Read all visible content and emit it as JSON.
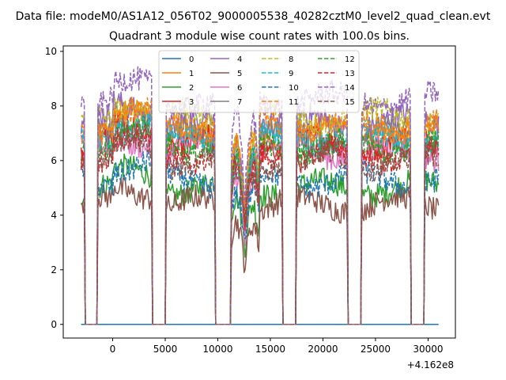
{
  "figure": {
    "suptitle": "Data file: modeM0/AS1A12_056T02_9000005538_40282cztM0_level2_quad_clean.evt",
    "title": "Quadrant 3 module wise count rates with 100.0s bins.",
    "x_offset_label": "+4.162e8"
  },
  "chart_data": {
    "type": "line",
    "title": "Quadrant 3 module wise count rates with 100.0s bins.",
    "xlabel": "",
    "ylabel": "",
    "x_offset": 416200000,
    "xlim": [
      -4700,
      32600
    ],
    "ylim": [
      -0.5,
      10.2
    ],
    "xticks": [
      0,
      5000,
      10000,
      15000,
      20000,
      25000,
      30000
    ],
    "xtick_labels": [
      "0",
      "5000",
      "10000",
      "15000",
      "20000",
      "25000",
      "30000"
    ],
    "yticks": [
      0,
      2,
      4,
      6,
      8,
      10
    ],
    "ytick_labels": [
      "0",
      "2",
      "4",
      "6",
      "8",
      "10"
    ],
    "bin_seconds": 100,
    "x_range": [
      -3000,
      31000
    ],
    "gaps": [
      [
        -2600,
        -1500
      ],
      [
        3800,
        5000
      ],
      [
        9800,
        11200
      ],
      [
        16200,
        17400
      ],
      [
        22400,
        23600
      ],
      [
        28400,
        29600
      ]
    ],
    "grid": false,
    "legend_position": "top-center",
    "series": [
      {
        "name": "0",
        "color": "#1f77b4",
        "style": "solid",
        "level": 0.0
      },
      {
        "name": "1",
        "color": "#ff7f0e",
        "style": "solid",
        "level": 7.1
      },
      {
        "name": "2",
        "color": "#2ca02c",
        "style": "solid",
        "level": 5.0
      },
      {
        "name": "3",
        "color": "#d62728",
        "style": "solid",
        "level": 6.6
      },
      {
        "name": "4",
        "color": "#9467bd",
        "style": "solid",
        "level": 7.4
      },
      {
        "name": "5",
        "color": "#8c564b",
        "style": "solid",
        "level": 4.4
      },
      {
        "name": "6",
        "color": "#e377c2",
        "style": "solid",
        "level": 6.3
      },
      {
        "name": "7",
        "color": "#7f7f7f",
        "style": "solid",
        "level": 6.9
      },
      {
        "name": "8",
        "color": "#bcbd22",
        "style": "dashed",
        "level": 7.6
      },
      {
        "name": "9",
        "color": "#17becf",
        "style": "dashed",
        "level": 6.8
      },
      {
        "name": "10",
        "color": "#1f77b4",
        "style": "dashed",
        "level": 5.3
      },
      {
        "name": "11",
        "color": "#ff7f0e",
        "style": "dashed",
        "level": 7.3
      },
      {
        "name": "12",
        "color": "#2ca02c",
        "style": "dashed",
        "level": 6.5
      },
      {
        "name": "13",
        "color": "#d62728",
        "style": "dashed",
        "level": 6.2
      },
      {
        "name": "14",
        "color": "#9467bd",
        "style": "dashed",
        "level": 8.2
      },
      {
        "name": "15",
        "color": "#8c564b",
        "style": "dashed",
        "level": 6.0
      }
    ]
  }
}
